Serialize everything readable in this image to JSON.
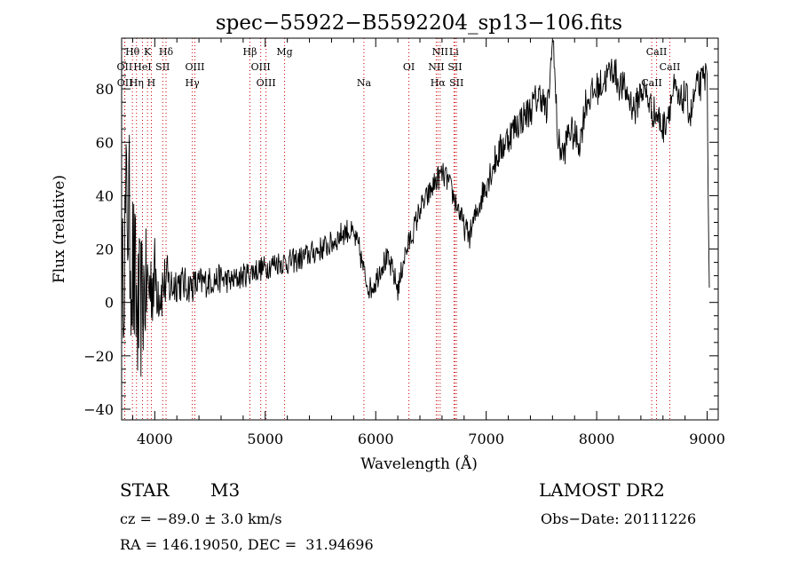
{
  "info": {
    "object_type": "STAR",
    "subclass": "M3",
    "survey": "LAMOST DR2",
    "cz": "cz = −89.0 ± 3.0 km/s",
    "obs_date": "Obs−Date: 20111226",
    "radec": "RA = 146.19050, DEC =  31.94696"
  },
  "colors": {
    "line_marker": "#cc0000",
    "spectrum": "#000000",
    "axes": "#000000"
  },
  "chart_data": {
    "type": "line",
    "title": "spec−55922−B5592204_sp13−106.fits",
    "xlabel": "Wavelength (Å)",
    "ylabel": "Flux (relative)",
    "xlim": [
      3700,
      9100
    ],
    "ylim": [
      -44,
      99
    ],
    "xticks": [
      4000,
      5000,
      6000,
      7000,
      8000,
      9000
    ],
    "yticks": [
      -40,
      -20,
      0,
      20,
      40,
      60,
      80
    ],
    "grid": false,
    "lines": [
      {
        "label": "Hθ",
        "wl": 3798,
        "row": 0
      },
      {
        "label": "K",
        "wl": 3934,
        "row": 0
      },
      {
        "label": "Hδ",
        "wl": 4102,
        "row": 0
      },
      {
        "label": "Hβ",
        "wl": 4861,
        "row": 0
      },
      {
        "label": "Mg",
        "wl": 5175,
        "row": 0
      },
      {
        "label": "NII",
        "wl": 6583,
        "row": 0
      },
      {
        "label": "Li",
        "wl": 6708,
        "row": 0
      },
      {
        "label": "CaII",
        "wl": 8542,
        "row": 0
      },
      {
        "label": "OII",
        "wl": 3727,
        "row": 1
      },
      {
        "label": "HeI",
        "wl": 3889,
        "row": 1
      },
      {
        "label": "SII",
        "wl": 4072,
        "row": 1
      },
      {
        "label": "OIII",
        "wl": 4363,
        "row": 1
      },
      {
        "label": "OIII",
        "wl": 4959,
        "row": 1
      },
      {
        "label": "OI",
        "wl": 6300,
        "row": 1
      },
      {
        "label": "NII",
        "wl": 6548,
        "row": 1
      },
      {
        "label": "SII",
        "wl": 6717,
        "row": 1
      },
      {
        "label": "CaII",
        "wl": 8662,
        "row": 1
      },
      {
        "label": "OII",
        "wl": 3729,
        "row": 2
      },
      {
        "label": "Hη",
        "wl": 3835,
        "row": 2
      },
      {
        "label": "H",
        "wl": 3969,
        "row": 2
      },
      {
        "label": "Hγ",
        "wl": 4340,
        "row": 2
      },
      {
        "label": "OIII",
        "wl": 5007,
        "row": 2
      },
      {
        "label": "Na",
        "wl": 5893,
        "row": 2
      },
      {
        "label": "Hα",
        "wl": 6563,
        "row": 2
      },
      {
        "label": "SII",
        "wl": 6731,
        "row": 2
      },
      {
        "label": "CaII",
        "wl": 8498,
        "row": 2
      }
    ],
    "spectrum_anchors": {
      "x": [
        3700,
        3750,
        3800,
        3850,
        3900,
        3950,
        4000,
        4050,
        4100,
        4150,
        4200,
        4300,
        4400,
        4500,
        4600,
        4700,
        4800,
        4900,
        5000,
        5100,
        5200,
        5300,
        5400,
        5500,
        5600,
        5700,
        5750,
        5800,
        5850,
        5900,
        5950,
        6000,
        6050,
        6100,
        6150,
        6200,
        6220,
        6250,
        6300,
        6350,
        6400,
        6450,
        6500,
        6550,
        6600,
        6650,
        6700,
        6750,
        6800,
        6850,
        6900,
        7000,
        7100,
        7200,
        7300,
        7400,
        7450,
        7500,
        7550,
        7600,
        7620,
        7650,
        7700,
        7750,
        7800,
        7850,
        7900,
        8000,
        8050,
        8100,
        8150,
        8200,
        8250,
        8300,
        8350,
        8400,
        8450,
        8500,
        8550,
        8600,
        8650,
        8700,
        8750,
        8800,
        8850,
        8900,
        8950,
        9000,
        9020
      ],
      "y": [
        0,
        40,
        12,
        -8,
        4,
        6,
        10,
        4,
        8,
        6,
        8,
        6,
        7,
        8,
        9,
        8,
        10,
        12,
        13,
        15,
        15,
        16,
        18,
        20,
        22,
        26,
        27,
        25,
        20,
        10,
        5,
        8,
        14,
        16,
        12,
        5,
        8,
        16,
        22,
        28,
        35,
        38,
        42,
        46,
        48,
        46,
        40,
        35,
        28,
        25,
        32,
        45,
        55,
        62,
        68,
        72,
        76,
        78,
        70,
        96,
        85,
        60,
        55,
        65,
        62,
        60,
        75,
        80,
        82,
        85,
        88,
        82,
        80,
        76,
        72,
        80,
        78,
        72,
        70,
        65,
        72,
        80,
        74,
        78,
        70,
        80,
        82,
        86,
        0
      ],
      "noise": [
        15,
        22,
        22,
        20,
        16,
        12,
        10,
        8,
        7,
        6,
        5,
        4,
        4,
        3.5,
        3.5,
        3,
        3,
        3,
        3,
        3,
        3,
        3,
        3,
        3,
        3,
        3,
        3,
        3,
        3,
        3,
        3,
        3,
        3,
        3,
        3,
        3,
        3,
        3,
        3,
        3,
        3,
        3,
        3,
        3,
        3,
        3,
        3,
        3,
        3,
        3,
        3,
        4,
        4,
        4,
        4,
        4,
        4,
        4,
        4,
        4,
        4,
        4,
        4,
        4,
        4,
        4,
        4,
        4,
        4,
        4,
        4,
        4,
        4,
        4,
        4,
        4,
        4,
        4,
        4,
        4,
        4,
        4,
        4,
        4,
        4,
        4,
        4,
        4,
        4
      ]
    }
  }
}
